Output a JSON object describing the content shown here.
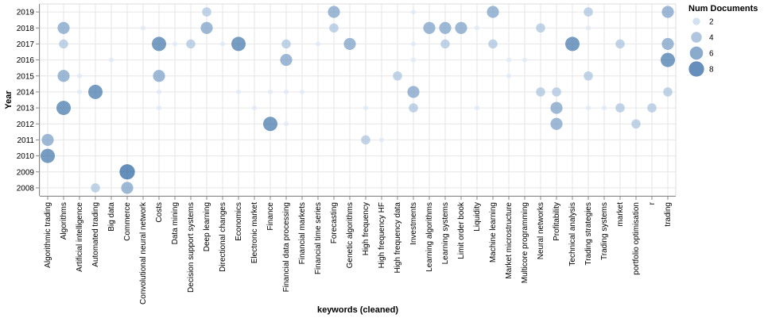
{
  "chart_data": {
    "type": "scatter",
    "xlabel": "keywords (cleaned)",
    "ylabel": "Year",
    "categories": [
      "Algorithmic trading",
      "Algorithms",
      "Artificial intelligence",
      "Automated trading",
      "Big data",
      "Commerce",
      "Convolutional neural network",
      "Costs",
      "Data mining",
      "Decision support systems",
      "Deep learning",
      "Directional changes",
      "Economics",
      "Electronic market",
      "Finance",
      "Financial data processing",
      "Financial markets",
      "Financial time series",
      "Forecasting",
      "Genetic algorithms",
      "High frequency",
      "High frequency HF",
      "High frequency data",
      "Investments",
      "Learning algorithms",
      "Learning systems",
      "Limit order book",
      "Liquidity",
      "Machine learning",
      "Market microstructure",
      "Multicore programming",
      "Neural networks",
      "Profitability",
      "Technical analysis",
      "Trading strategies",
      "Trading systems",
      "market",
      "portfolio optimisation",
      "r",
      "trading"
    ],
    "years": [
      "2019",
      "2018",
      "2017",
      "2016",
      "2015",
      "2014",
      "2013",
      "2012",
      "2011",
      "2010",
      "2009",
      "2008"
    ],
    "size_field": "Num Documents",
    "size_domain": [
      1,
      9
    ],
    "legend": {
      "title": "Num Documents",
      "placement": "top-right",
      "values": [
        2,
        4,
        6,
        8
      ],
      "labels": [
        "2",
        "4",
        "6",
        "8"
      ]
    },
    "points": [
      {
        "x": "Algorithmic trading",
        "y": "2011",
        "n": 5
      },
      {
        "x": "Algorithmic trading",
        "y": "2010",
        "n": 7
      },
      {
        "x": "Algorithms",
        "y": "2018",
        "n": 5
      },
      {
        "x": "Algorithms",
        "y": "2017",
        "n": 3
      },
      {
        "x": "Algorithms",
        "y": "2015",
        "n": 5
      },
      {
        "x": "Algorithms",
        "y": "2013",
        "n": 7
      },
      {
        "x": "Artificial intelligence",
        "y": "2015",
        "n": 1
      },
      {
        "x": "Artificial intelligence",
        "y": "2014",
        "n": 1
      },
      {
        "x": "Automated trading",
        "y": "2014",
        "n": 7
      },
      {
        "x": "Automated trading",
        "y": "2008",
        "n": 3
      },
      {
        "x": "Big data",
        "y": "2016",
        "n": 1
      },
      {
        "x": "Commerce",
        "y": "2009",
        "n": 8
      },
      {
        "x": "Commerce",
        "y": "2008",
        "n": 5
      },
      {
        "x": "Convolutional neural network",
        "y": "2018",
        "n": 1
      },
      {
        "x": "Costs",
        "y": "2017",
        "n": 7
      },
      {
        "x": "Costs",
        "y": "2015",
        "n": 5
      },
      {
        "x": "Costs",
        "y": "2014",
        "n": 1
      },
      {
        "x": "Costs",
        "y": "2013",
        "n": 1
      },
      {
        "x": "Data mining",
        "y": "2017",
        "n": 1
      },
      {
        "x": "Decision support systems",
        "y": "2017",
        "n": 3
      },
      {
        "x": "Deep learning",
        "y": "2019",
        "n": 3
      },
      {
        "x": "Deep learning",
        "y": "2018",
        "n": 5
      },
      {
        "x": "Directional changes",
        "y": "2017",
        "n": 1
      },
      {
        "x": "Economics",
        "y": "2017",
        "n": 7
      },
      {
        "x": "Economics",
        "y": "2014",
        "n": 1
      },
      {
        "x": "Electronic market",
        "y": "2013",
        "n": 1
      },
      {
        "x": "Finance",
        "y": "2014",
        "n": 1
      },
      {
        "x": "Finance",
        "y": "2012",
        "n": 7
      },
      {
        "x": "Financial data processing",
        "y": "2017",
        "n": 3
      },
      {
        "x": "Financial data processing",
        "y": "2016",
        "n": 5
      },
      {
        "x": "Financial data processing",
        "y": "2014",
        "n": 1
      },
      {
        "x": "Financial data processing",
        "y": "2012",
        "n": 1
      },
      {
        "x": "Financial markets",
        "y": "2014",
        "n": 1
      },
      {
        "x": "Financial time series",
        "y": "2017",
        "n": 1
      },
      {
        "x": "Forecasting",
        "y": "2019",
        "n": 5
      },
      {
        "x": "Forecasting",
        "y": "2018",
        "n": 3
      },
      {
        "x": "Genetic algorithms",
        "y": "2017",
        "n": 5
      },
      {
        "x": "High frequency",
        "y": "2013",
        "n": 1
      },
      {
        "x": "High frequency",
        "y": "2011",
        "n": 3
      },
      {
        "x": "High frequency HF",
        "y": "2011",
        "n": 1
      },
      {
        "x": "High frequency data",
        "y": "2015",
        "n": 3
      },
      {
        "x": "Investments",
        "y": "2019",
        "n": 1
      },
      {
        "x": "Investments",
        "y": "2017",
        "n": 1
      },
      {
        "x": "Investments",
        "y": "2016",
        "n": 1
      },
      {
        "x": "Investments",
        "y": "2014",
        "n": 5
      },
      {
        "x": "Investments",
        "y": "2013",
        "n": 3
      },
      {
        "x": "Learning algorithms",
        "y": "2018",
        "n": 5
      },
      {
        "x": "Learning systems",
        "y": "2018",
        "n": 5
      },
      {
        "x": "Learning systems",
        "y": "2017",
        "n": 3
      },
      {
        "x": "Limit order book",
        "y": "2018",
        "n": 5
      },
      {
        "x": "Liquidity",
        "y": "2018",
        "n": 1
      },
      {
        "x": "Liquidity",
        "y": "2013",
        "n": 1
      },
      {
        "x": "Machine learning",
        "y": "2019",
        "n": 5
      },
      {
        "x": "Machine learning",
        "y": "2017",
        "n": 3
      },
      {
        "x": "Market microstructure",
        "y": "2016",
        "n": 1
      },
      {
        "x": "Market microstructure",
        "y": "2015",
        "n": 1
      },
      {
        "x": "Multicore programming",
        "y": "2016",
        "n": 1
      },
      {
        "x": "Neural networks",
        "y": "2018",
        "n": 3
      },
      {
        "x": "Neural networks",
        "y": "2014",
        "n": 3
      },
      {
        "x": "Profitability",
        "y": "2014",
        "n": 3
      },
      {
        "x": "Profitability",
        "y": "2013",
        "n": 5
      },
      {
        "x": "Profitability",
        "y": "2012",
        "n": 5
      },
      {
        "x": "Technical analysis",
        "y": "2017",
        "n": 7
      },
      {
        "x": "Trading strategies",
        "y": "2019",
        "n": 3
      },
      {
        "x": "Trading strategies",
        "y": "2018",
        "n": 1
      },
      {
        "x": "Trading strategies",
        "y": "2015",
        "n": 3
      },
      {
        "x": "Trading strategies",
        "y": "2013",
        "n": 1
      },
      {
        "x": "Trading systems",
        "y": "2013",
        "n": 1
      },
      {
        "x": "market",
        "y": "2017",
        "n": 3
      },
      {
        "x": "market",
        "y": "2013",
        "n": 3
      },
      {
        "x": "portfolio optimisation",
        "y": "2012",
        "n": 3
      },
      {
        "x": "r",
        "y": "2013",
        "n": 3
      },
      {
        "x": "trading",
        "y": "2019",
        "n": 5
      },
      {
        "x": "trading",
        "y": "2017",
        "n": 5
      },
      {
        "x": "trading",
        "y": "2016",
        "n": 7
      },
      {
        "x": "trading",
        "y": "2014",
        "n": 3
      }
    ],
    "grid": true,
    "colors": {
      "low": "#dbe8f6",
      "high": "#0b4d91",
      "grid": "#e6e6e6",
      "axis": "#888888"
    }
  }
}
